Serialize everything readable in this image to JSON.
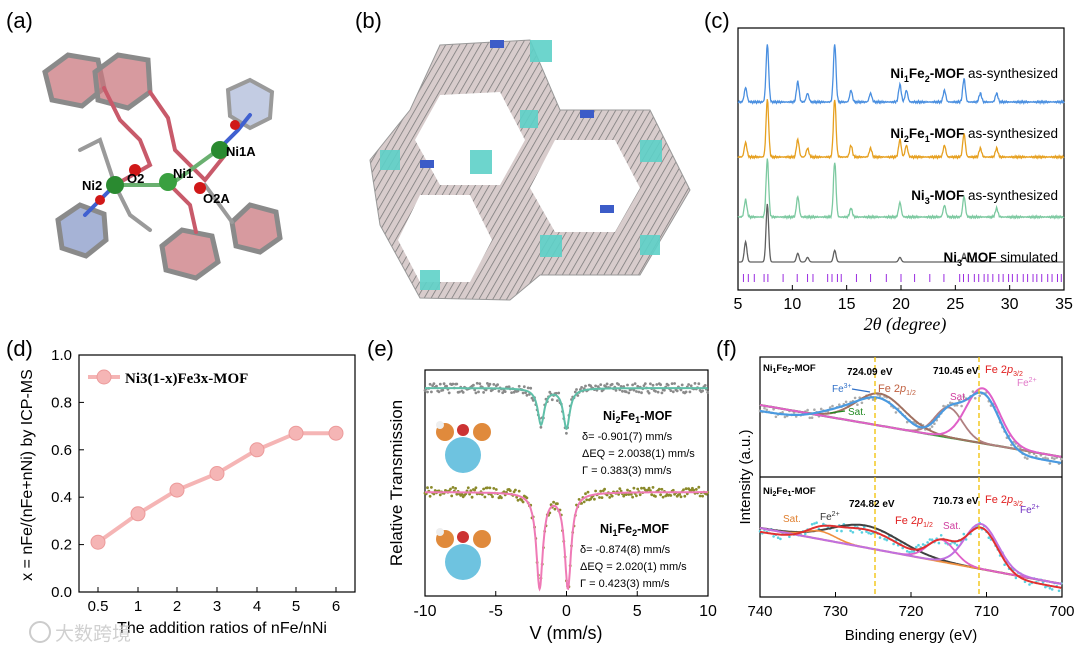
{
  "panel_labels": {
    "a": "(a)",
    "b": "(b)",
    "c": "(c)",
    "d": "(d)",
    "e": "(e)",
    "f": "(f)"
  },
  "colors": {
    "blue": "#4a8fe0",
    "orange": "#e6a020",
    "green": "#7cc9a0",
    "gray": "#606060",
    "pink": "#f5b5b5",
    "teal": "#5fbfa8",
    "olive": "#8a8a2a",
    "magenta": "#e078c8",
    "fitpink": "#ef7ab6",
    "dash": "#f0c000"
  },
  "panel_a": {
    "atom_labels": [
      "Ni2",
      "O2",
      "Ni1",
      "Ni1A",
      "O2A"
    ]
  },
  "chart_data": [
    {
      "panel": "c",
      "type": "line",
      "xlabel": "2θ (degree)",
      "ylabel": "",
      "xlim": [
        5,
        35
      ],
      "xticks": [
        5,
        10,
        15,
        20,
        25,
        30,
        35
      ],
      "series": [
        {
          "name": "Ni1Fe2-MOF",
          "suffix": " as-synthesized",
          "color": "#4a8fe0",
          "peaks": [
            [
              5.7,
              0.25
            ],
            [
              7.7,
              1.0
            ],
            [
              10.5,
              0.35
            ],
            [
              11.4,
              0.15
            ],
            [
              13.9,
              1.0
            ],
            [
              15.4,
              0.2
            ],
            [
              17.2,
              0.15
            ],
            [
              19.9,
              0.3
            ],
            [
              20.5,
              0.2
            ],
            [
              24.0,
              0.2
            ],
            [
              25.8,
              0.4
            ],
            [
              27.3,
              0.15
            ],
            [
              28.8,
              0.15
            ]
          ]
        },
        {
          "name": "Ni2Fe1-MOF",
          "suffix": " as-synthesized",
          "color": "#e6a020",
          "peaks": [
            [
              5.7,
              0.25
            ],
            [
              7.7,
              1.0
            ],
            [
              10.5,
              0.3
            ],
            [
              11.4,
              0.15
            ],
            [
              13.9,
              1.0
            ],
            [
              15.4,
              0.2
            ],
            [
              17.2,
              0.15
            ],
            [
              19.9,
              0.3
            ],
            [
              20.5,
              0.2
            ],
            [
              24.0,
              0.2
            ],
            [
              25.8,
              0.4
            ],
            [
              27.3,
              0.15
            ],
            [
              28.8,
              0.15
            ]
          ]
        },
        {
          "name": "Ni3-MOF",
          "suffix": " as-synthesized",
          "color": "#7cc9a0",
          "peaks": [
            [
              5.7,
              0.3
            ],
            [
              7.7,
              1.0
            ],
            [
              10.5,
              0.35
            ],
            [
              13.9,
              0.95
            ],
            [
              15.4,
              0.15
            ],
            [
              19.9,
              0.25
            ],
            [
              24.0,
              0.2
            ],
            [
              25.8,
              0.35
            ],
            [
              28.8,
              0.15
            ]
          ]
        },
        {
          "name": "Ni3-MOF",
          "suffix": " simulated",
          "color": "#606060",
          "peaks": [
            [
              5.7,
              0.35
            ],
            [
              7.7,
              1.0
            ],
            [
              10.5,
              0.15
            ],
            [
              11.4,
              0.08
            ],
            [
              13.9,
              0.2
            ],
            [
              19.9,
              0.08
            ],
            [
              25.8,
              0.15
            ]
          ]
        }
      ]
    },
    {
      "panel": "d",
      "type": "line",
      "title": "Ni3(1-x)Fe3x-MOF",
      "xlabel": "The addition ratios of nFe/nNi",
      "ylabel": "x = nFe/(nFe+nNi) by ICP-MS",
      "categories": [
        "0.5",
        "1",
        "2",
        "3",
        "4",
        "5",
        "6"
      ],
      "values": [
        0.21,
        0.33,
        0.43,
        0.5,
        0.6,
        0.67,
        0.67
      ],
      "ylim": [
        0.0,
        1.0
      ],
      "yticks": [
        "0.0",
        "0.2",
        "0.4",
        "0.6",
        "0.8",
        "1.0"
      ]
    },
    {
      "panel": "e",
      "type": "scatter",
      "xlabel": "V (mm/s)",
      "ylabel": "Relative Transmission",
      "xlim": [
        -10,
        10
      ],
      "xticks": [
        "-10",
        "-5",
        "0",
        "5",
        "10"
      ],
      "series": [
        {
          "name": "Ni2Fe1-MOF",
          "color": "#5fbfa8",
          "dips": [
            [
              -1.8,
              0.9
            ],
            [
              0.0,
              1.0
            ]
          ],
          "params": [
            "δ= -0.901(7) mm/s",
            "ΔEQ = 2.0038(1) mm/s",
            "Γ = 0.383(3) mm/s"
          ]
        },
        {
          "name": "Ni1Fe2-MOF",
          "color": "#ef7ab6",
          "dips": [
            [
              -1.9,
              1.0
            ],
            [
              0.1,
              1.0
            ]
          ],
          "params": [
            "δ= -0.874(8) mm/s",
            "ΔEQ = 2.020(1) mm/s",
            "Γ = 0.423(3) mm/s"
          ]
        }
      ]
    },
    {
      "panel": "f",
      "type": "line",
      "xlabel": "Binding energy (eV)",
      "ylabel": "Intensity (a.u.)",
      "xlim": [
        740,
        700
      ],
      "xticks": [
        "740",
        "730",
        "720",
        "710",
        "700"
      ],
      "subplots": [
        {
          "name": "Ni1Fe2-MOF",
          "peaks": [
            "724.09 eV",
            "710.45 eV"
          ],
          "labels": [
            "Fe3+",
            "Fe 2p1/2",
            "Sat.",
            "Sat.",
            "Fe 2p3/2",
            "Fe2+"
          ]
        },
        {
          "name": "Ni2Fe1-MOF",
          "peaks": [
            "724.82 eV",
            "710.73 eV"
          ],
          "labels": [
            "Sat.",
            "Fe2+",
            "Fe 2p1/2",
            "Sat.",
            "Fe 2p3/2",
            "Fe2+"
          ]
        }
      ]
    }
  ],
  "watermark": "大数跨境"
}
